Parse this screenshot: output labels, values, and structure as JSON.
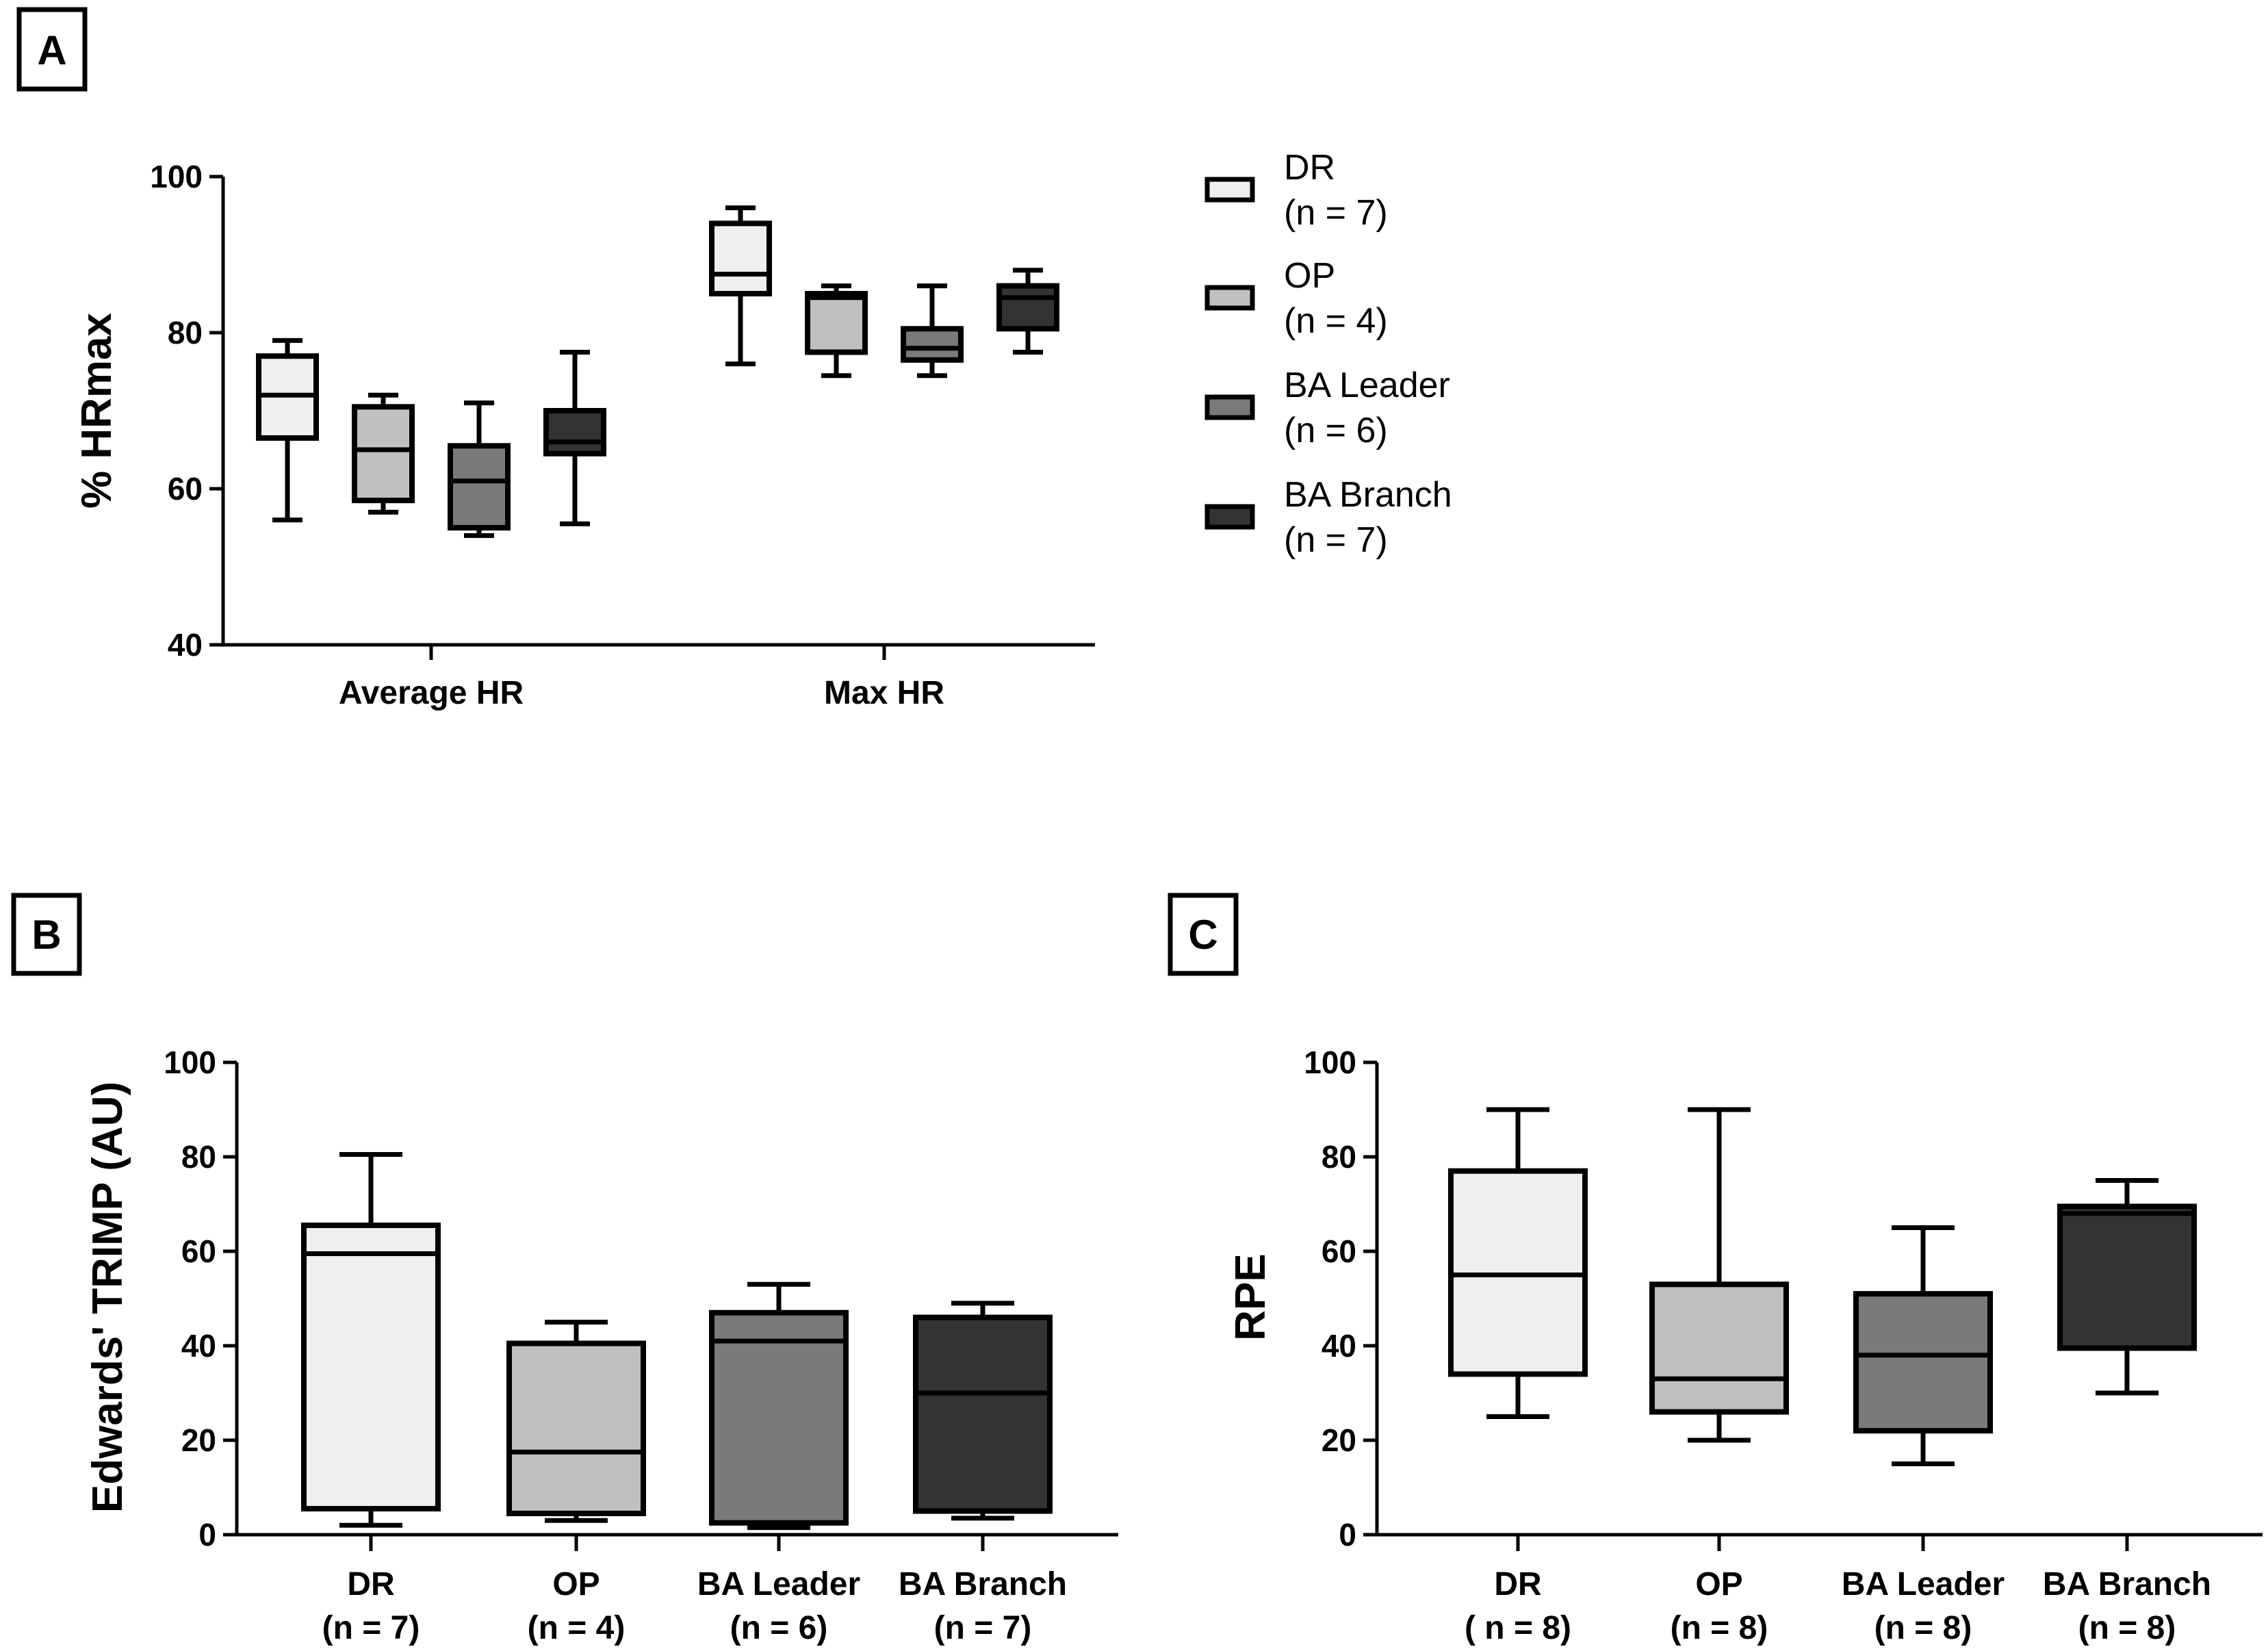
{
  "panels": {
    "A": {
      "letter": "A"
    },
    "B": {
      "letter": "B"
    },
    "C": {
      "letter": "C"
    }
  },
  "legend": [
    {
      "label": "DR",
      "n": "(n = 7)",
      "color": "#efefef"
    },
    {
      "label": "OP",
      "n": "(n = 4)",
      "color": "#c0c0c0"
    },
    {
      "label": "BA Leader",
      "n": "(n = 6)",
      "color": "#7a7a7a"
    },
    {
      "label": "BA Branch",
      "n": "(n = 7)",
      "color": "#333333"
    }
  ],
  "chart_data": [
    {
      "id": "A",
      "type": "box",
      "ylabel": "% HRmax",
      "ylim": [
        40,
        100
      ],
      "yticks": [
        40,
        60,
        80,
        100
      ],
      "categories": [
        "Average HR",
        "Max HR"
      ],
      "groups": [
        "DR",
        "OP",
        "BA Leader",
        "BA Branch"
      ],
      "colors": [
        "#efefef",
        "#c0c0c0",
        "#7a7a7a",
        "#333333"
      ],
      "boxes": [
        [
          {
            "min": 56,
            "q1": 66.5,
            "median": 72,
            "q3": 77,
            "max": 79
          },
          {
            "min": 57,
            "q1": 58.5,
            "median": 65,
            "q3": 70.5,
            "max": 72
          },
          {
            "min": 54,
            "q1": 55,
            "median": 61,
            "q3": 65.5,
            "max": 71
          },
          {
            "min": 55.5,
            "q1": 64.5,
            "median": 66,
            "q3": 70,
            "max": 77.5
          }
        ],
        [
          {
            "min": 76,
            "q1": 85,
            "median": 87.5,
            "q3": 94,
            "max": 96
          },
          {
            "min": 74.5,
            "q1": 77.5,
            "median": 84.5,
            "q3": 85,
            "max": 86
          },
          {
            "min": 74.5,
            "q1": 76.5,
            "median": 78,
            "q3": 80.5,
            "max": 86
          },
          {
            "min": 77.5,
            "q1": 80.5,
            "median": 84.5,
            "q3": 86,
            "max": 88
          }
        ]
      ]
    },
    {
      "id": "B",
      "type": "box",
      "ylabel": "Edwards' TRIMP (AU)",
      "ylim": [
        0,
        100
      ],
      "yticks": [
        0,
        20,
        40,
        60,
        80,
        100
      ],
      "categories": [
        {
          "name": "DR",
          "n": "(n = 7)"
        },
        {
          "name": "OP",
          "n": "(n = 4)"
        },
        {
          "name": "BA Leader",
          "n": "(n = 6)"
        },
        {
          "name": "BA Branch",
          "n": "(n = 7)"
        }
      ],
      "colors": [
        "#efefef",
        "#c0c0c0",
        "#7a7a7a",
        "#333333"
      ],
      "boxes": [
        {
          "min": 2,
          "q1": 5.5,
          "median": 59.5,
          "q3": 65.5,
          "max": 80.5
        },
        {
          "min": 3,
          "q1": 4.5,
          "median": 17.5,
          "q3": 40.5,
          "max": 45
        },
        {
          "min": 1.5,
          "q1": 2.5,
          "median": 41,
          "q3": 47,
          "max": 53
        },
        {
          "min": 3.5,
          "q1": 5,
          "median": 30,
          "q3": 46,
          "max": 49
        }
      ]
    },
    {
      "id": "C",
      "type": "box",
      "ylabel": "RPE",
      "ylim": [
        0,
        100
      ],
      "yticks": [
        0,
        20,
        40,
        60,
        80,
        100
      ],
      "categories": [
        {
          "name": "DR",
          "n": "( n = 8)"
        },
        {
          "name": "OP",
          "n": "(n = 8)"
        },
        {
          "name": "BA Leader",
          "n": "(n = 8)"
        },
        {
          "name": "BA Branch",
          "n": "(n = 8)"
        }
      ],
      "colors": [
        "#efefef",
        "#c0c0c0",
        "#7a7a7a",
        "#333333"
      ],
      "boxes": [
        {
          "min": 25,
          "q1": 34,
          "median": 55,
          "q3": 77,
          "max": 90
        },
        {
          "min": 20,
          "q1": 26,
          "median": 33,
          "q3": 53,
          "max": 90
        },
        {
          "min": 15,
          "q1": 22,
          "median": 38,
          "q3": 51,
          "max": 65
        },
        {
          "min": 30,
          "q1": 39.5,
          "median": 68,
          "q3": 69.5,
          "max": 75
        }
      ]
    }
  ]
}
